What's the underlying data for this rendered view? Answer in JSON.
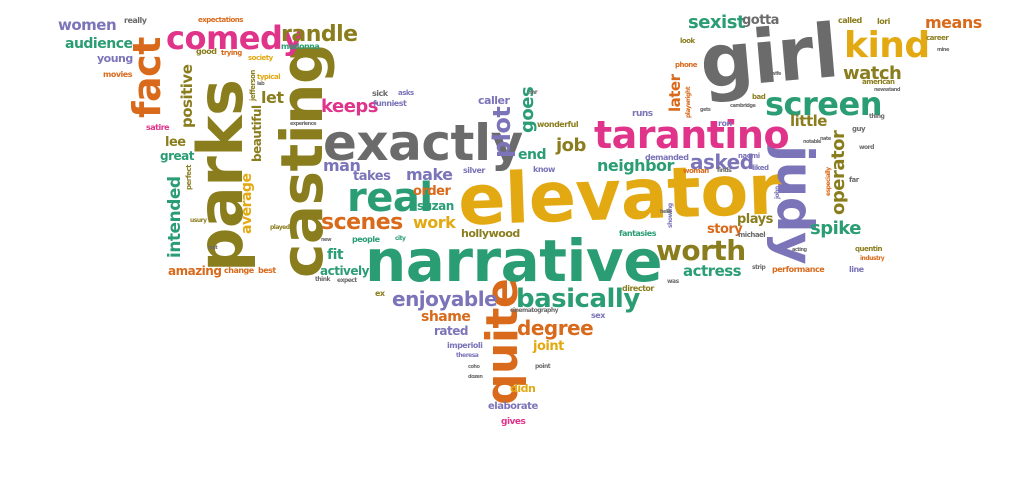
{
  "colors": {
    "teal": "#2a9d74",
    "orange": "#d96a1b",
    "purple": "#7b74b8",
    "pink": "#e0338a",
    "olive": "#8a7d1e",
    "gold": "#e3a912",
    "gray": "#6b6b6b",
    "green": "#6fa82b"
  },
  "words": [
    {
      "text": "elevator",
      "color": "gold",
      "cls": "w-elevator"
    },
    {
      "text": "narrative",
      "color": "teal",
      "cls": "w-narrative"
    },
    {
      "text": "parks",
      "color": "olive",
      "cls": "w-parks"
    },
    {
      "text": "casting",
      "color": "olive",
      "cls": "w-casting"
    },
    {
      "text": "girl",
      "color": "gray",
      "cls": "w-girl"
    },
    {
      "text": "exactly",
      "color": "gray",
      "cls": "w-exactly"
    },
    {
      "text": "judy",
      "color": "purple",
      "cls": "w-judy"
    },
    {
      "text": "tarantino",
      "color": "pink",
      "cls": "w-tarantino"
    },
    {
      "text": "quite",
      "color": "orange",
      "cls": "w-quite"
    },
    {
      "text": "real",
      "color": "teal",
      "cls": "w-real"
    },
    {
      "text": "fact",
      "color": "orange",
      "cls": "w-fact"
    },
    {
      "text": "comedy",
      "color": "pink",
      "cls": "w-comedy"
    },
    {
      "text": "screen",
      "color": "teal",
      "cls": "w-screen"
    },
    {
      "text": "kind",
      "color": "gold",
      "cls": "w-kind"
    },
    {
      "text": "basically",
      "color": "teal",
      "cls": "w-basically"
    },
    {
      "text": "worth",
      "color": "olive",
      "cls": "w-worth"
    },
    {
      "text": "randle",
      "color": "olive",
      "cls": "w-randle"
    },
    {
      "text": "plot",
      "color": "purple",
      "cls": "w-plot"
    },
    {
      "text": "scenes",
      "color": "orange",
      "cls": "w-scenes"
    },
    {
      "text": "enjoyable",
      "color": "purple",
      "cls": "w-enjoyable"
    },
    {
      "text": "degree",
      "color": "orange",
      "cls": "w-degree"
    },
    {
      "text": "sexist",
      "color": "teal",
      "cls": "w-sexist"
    },
    {
      "text": "watch",
      "color": "olive",
      "cls": "w-watch"
    },
    {
      "text": "operator",
      "color": "olive",
      "cls": "w-operator"
    },
    {
      "text": "asked",
      "color": "purple",
      "cls": "w-asked"
    },
    {
      "text": "keeps",
      "color": "pink",
      "cls": "w-keeps"
    },
    {
      "text": "job",
      "color": "olive",
      "cls": "w-job"
    },
    {
      "text": "spike",
      "color": "teal",
      "cls": "w-spike"
    },
    {
      "text": "means",
      "color": "orange",
      "cls": "w-means"
    },
    {
      "text": "goes",
      "color": "teal",
      "cls": "w-goes"
    },
    {
      "text": "intended",
      "color": "teal",
      "cls": "w-intended"
    },
    {
      "text": "women",
      "color": "purple",
      "cls": "w-women"
    },
    {
      "text": "audience",
      "color": "teal",
      "cls": "w-audience"
    },
    {
      "text": "positive",
      "color": "olive",
      "cls": "w-positive"
    },
    {
      "text": "let",
      "color": "olive",
      "cls": "w-let"
    },
    {
      "text": "man",
      "color": "purple",
      "cls": "w-man"
    },
    {
      "text": "make",
      "color": "purple",
      "cls": "w-make"
    },
    {
      "text": "work",
      "color": "gold",
      "cls": "w-work"
    },
    {
      "text": "neighbor",
      "color": "teal",
      "cls": "w-neighbor"
    },
    {
      "text": "end",
      "color": "teal",
      "cls": "w-end"
    },
    {
      "text": "actress",
      "color": "teal",
      "cls": "w-actress"
    },
    {
      "text": "later",
      "color": "orange",
      "cls": "w-later"
    },
    {
      "text": "little",
      "color": "olive",
      "cls": "w-little"
    },
    {
      "text": "gotta",
      "color": "gray",
      "cls": "w-gotta"
    },
    {
      "text": "lee",
      "color": "olive",
      "cls": "w-lee"
    },
    {
      "text": "great",
      "color": "teal",
      "cls": "w-great"
    },
    {
      "text": "average",
      "color": "gold",
      "cls": "w-average"
    },
    {
      "text": "beautiful",
      "color": "olive",
      "cls": "w-beautiful"
    },
    {
      "text": "takes",
      "color": "purple",
      "cls": "w-takes"
    },
    {
      "text": "order",
      "color": "orange",
      "cls": "w-order"
    },
    {
      "text": "suzan",
      "color": "teal",
      "cls": "w-suzan"
    },
    {
      "text": "fit",
      "color": "teal",
      "cls": "w-fit"
    },
    {
      "text": "actively",
      "color": "teal",
      "cls": "w-actively"
    },
    {
      "text": "amazing",
      "color": "orange",
      "cls": "w-amazing"
    },
    {
      "text": "shame",
      "color": "orange",
      "cls": "w-shame"
    },
    {
      "text": "rated",
      "color": "purple",
      "cls": "w-rated"
    },
    {
      "text": "joint",
      "color": "gold",
      "cls": "w-joint"
    },
    {
      "text": "story",
      "color": "orange",
      "cls": "w-story"
    },
    {
      "text": "plays",
      "color": "olive",
      "cls": "w-plays"
    },
    {
      "text": "young",
      "color": "purple",
      "cls": "w-young"
    },
    {
      "text": "caller",
      "color": "purple",
      "cls": "w-caller"
    },
    {
      "text": "hollywood",
      "color": "olive",
      "cls": "w-hollywood"
    },
    {
      "text": "didn",
      "color": "gold",
      "cls": "w-didn"
    },
    {
      "text": "elaborate",
      "color": "purple",
      "cls": "w-elaborate"
    },
    {
      "text": "gives",
      "color": "pink",
      "cls": "w-gives"
    },
    {
      "text": "really",
      "color": "gray",
      "cls": "w-really"
    },
    {
      "text": "expectations",
      "color": "orange",
      "cls": "w-expectations"
    },
    {
      "text": "good",
      "color": "olive",
      "cls": "w-good"
    },
    {
      "text": "trying",
      "color": "orange",
      "cls": "w-trying"
    },
    {
      "text": "madonna",
      "color": "teal",
      "cls": "w-madonna"
    },
    {
      "text": "jefferson",
      "color": "olive",
      "cls": "w-jefferson"
    },
    {
      "text": "society",
      "color": "gold",
      "cls": "w-society"
    },
    {
      "text": "movies",
      "color": "orange",
      "cls": "w-movies"
    },
    {
      "text": "typical",
      "color": "gold",
      "cls": "w-typical"
    },
    {
      "text": "sick",
      "color": "gray",
      "cls": "w-sick"
    },
    {
      "text": "funniest",
      "color": "purple",
      "cls": "w-funniest"
    },
    {
      "text": "asks",
      "color": "purple",
      "cls": "w-asks"
    },
    {
      "text": "satire",
      "color": "pink",
      "cls": "w-satire"
    },
    {
      "text": "perfect",
      "color": "olive",
      "cls": "w-perfect"
    },
    {
      "text": "played",
      "color": "olive",
      "cls": "w-played"
    },
    {
      "text": "usury",
      "color": "olive",
      "cls": "w-usury"
    },
    {
      "text": "change",
      "color": "orange",
      "cls": "w-change"
    },
    {
      "text": "best",
      "color": "orange",
      "cls": "w-best"
    },
    {
      "text": "people",
      "color": "teal",
      "cls": "w-people"
    },
    {
      "text": "city",
      "color": "teal",
      "cls": "w-city"
    },
    {
      "text": "think",
      "color": "gray",
      "cls": "w-think"
    },
    {
      "text": "expect",
      "color": "gray",
      "cls": "w-expect"
    },
    {
      "text": "ex",
      "color": "olive",
      "cls": "w-ex"
    },
    {
      "text": "silver",
      "color": "purple",
      "cls": "w-silver"
    },
    {
      "text": "know",
      "color": "purple",
      "cls": "w-know"
    },
    {
      "text": "wonderful",
      "color": "olive",
      "cls": "w-wonderful"
    },
    {
      "text": "runs",
      "color": "purple",
      "cls": "w-runs"
    },
    {
      "text": "demanded",
      "color": "purple",
      "cls": "w-demanded"
    },
    {
      "text": "woman",
      "color": "orange",
      "cls": "w-woman"
    },
    {
      "text": "finds",
      "color": "gray",
      "cls": "w-finds"
    },
    {
      "text": "fantasies",
      "color": "teal",
      "cls": "w-fantasies"
    },
    {
      "text": "michael",
      "color": "gray",
      "cls": "w-michael"
    },
    {
      "text": "director",
      "color": "olive",
      "cls": "w-director"
    },
    {
      "text": "cinematography",
      "color": "gray",
      "cls": "w-cinematography"
    },
    {
      "text": "sex",
      "color": "purple",
      "cls": "w-sex"
    },
    {
      "text": "imperioli",
      "color": "purple",
      "cls": "w-imperioli"
    },
    {
      "text": "theresa",
      "color": "purple",
      "cls": "w-theresa"
    },
    {
      "text": "point",
      "color": "gray",
      "cls": "w-point"
    },
    {
      "text": "phone",
      "color": "orange",
      "cls": "w-phone"
    },
    {
      "text": "playwright",
      "color": "orange",
      "cls": "w-playwright"
    },
    {
      "text": "ron",
      "color": "purple",
      "cls": "w-ron"
    },
    {
      "text": "naomi",
      "color": "purple",
      "cls": "w-naomi"
    },
    {
      "text": "liked",
      "color": "purple",
      "cls": "w-liked"
    },
    {
      "text": "called",
      "color": "olive",
      "cls": "w-called"
    },
    {
      "text": "lori",
      "color": "olive",
      "cls": "w-lori"
    },
    {
      "text": "career",
      "color": "olive",
      "cls": "w-career"
    },
    {
      "text": "look",
      "color": "olive",
      "cls": "w-look"
    },
    {
      "text": "american",
      "color": "olive",
      "cls": "w-american"
    },
    {
      "text": "newsstand",
      "color": "gray",
      "cls": "w-newsstand"
    },
    {
      "text": "thing",
      "color": "gray",
      "cls": "w-thing"
    },
    {
      "text": "guy",
      "color": "gray",
      "cls": "w-guy"
    },
    {
      "text": "word",
      "color": "gray",
      "cls": "w-word"
    },
    {
      "text": "especially",
      "color": "orange",
      "cls": "w-especially"
    },
    {
      "text": "far",
      "color": "gray",
      "cls": "w-far"
    },
    {
      "text": "quentin",
      "color": "olive",
      "cls": "w-quentin"
    },
    {
      "text": "industry",
      "color": "orange",
      "cls": "w-industry"
    },
    {
      "text": "line",
      "color": "purple",
      "cls": "w-line"
    },
    {
      "text": "performance",
      "color": "orange",
      "cls": "w-performance"
    },
    {
      "text": "strip",
      "color": "gray",
      "cls": "w-strip"
    },
    {
      "text": "john",
      "color": "purple",
      "cls": "w-john"
    },
    {
      "text": "acting",
      "color": "gray",
      "cls": "w-acting"
    },
    {
      "text": "showing",
      "color": "purple",
      "cls": "w-showing"
    },
    {
      "text": "bad",
      "color": "olive",
      "cls": "w-bad"
    },
    {
      "text": "cambridge",
      "color": "gray",
      "cls": "w-cambridge"
    },
    {
      "text": "gets",
      "color": "gray",
      "cls": "w-gets"
    },
    {
      "text": "was",
      "color": "gray",
      "cls": "w-was"
    },
    {
      "text": "mr",
      "color": "gray",
      "cls": "w-mr"
    },
    {
      "text": "wife",
      "color": "gray",
      "cls": "w-wife"
    },
    {
      "text": "nate",
      "color": "gray",
      "cls": "w-nate"
    },
    {
      "text": "experience",
      "color": "gray",
      "cls": "w-experience"
    },
    {
      "text": "new",
      "color": "gray",
      "cls": "w-new"
    },
    {
      "text": "rest",
      "color": "gray",
      "cls": "w-rest"
    },
    {
      "text": "coho",
      "color": "gray",
      "cls": "w-coho"
    },
    {
      "text": "dozen",
      "color": "gray",
      "cls": "w-dozen"
    },
    {
      "text": "hello",
      "color": "gray",
      "cls": "w-hello"
    },
    {
      "text": "lab",
      "color": "gray",
      "cls": "w-lab"
    },
    {
      "text": "notable",
      "color": "gray",
      "cls": "w-notable"
    },
    {
      "text": "mine",
      "color": "gray",
      "cls": "w-mine"
    }
  ]
}
